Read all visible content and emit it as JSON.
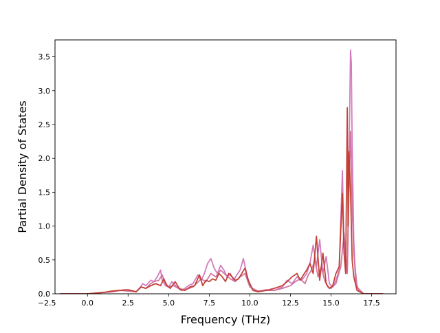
{
  "chart_data": {
    "type": "line",
    "title": "",
    "xlabel": "Frequency (THz)",
    "ylabel": "Partial Density of States",
    "xlim": [
      -2.0,
      19.0
    ],
    "ylim": [
      0.0,
      3.75
    ],
    "xticks": [
      -2.5,
      0.0,
      2.5,
      5.0,
      7.5,
      10.0,
      12.5,
      15.0,
      17.5
    ],
    "xtick_labels": [
      "−2.5",
      "0.0",
      "2.5",
      "5.0",
      "7.5",
      "10.0",
      "12.5",
      "15.0",
      "17.5"
    ],
    "yticks": [
      0.0,
      0.5,
      1.0,
      1.5,
      2.0,
      2.5,
      3.0,
      3.5
    ],
    "ytick_labels": [
      "0.0",
      "0.5",
      "1.0",
      "1.5",
      "2.0",
      "2.5",
      "3.0",
      "3.5"
    ],
    "grid": false,
    "legend": "none",
    "series": [
      {
        "color": "#d075bb",
        "x": [
          -1.7,
          0.0,
          0.5,
          1.0,
          1.5,
          2.0,
          2.3,
          2.6,
          3.0,
          3.2,
          3.4,
          3.6,
          3.9,
          4.1,
          4.3,
          4.5,
          4.6,
          4.8,
          5.0,
          5.2,
          5.5,
          5.8,
          6.0,
          6.2,
          6.5,
          6.8,
          7.0,
          7.2,
          7.4,
          7.6,
          7.8,
          8.0,
          8.2,
          8.4,
          8.6,
          8.8,
          9.0,
          9.2,
          9.4,
          9.6,
          9.8,
          10.0,
          10.2,
          10.5,
          11.0,
          11.5,
          12.0,
          12.3,
          12.6,
          12.9,
          13.2,
          13.5,
          13.7,
          13.9,
          14.1,
          14.3,
          14.5,
          14.7,
          14.9,
          15.1,
          15.3,
          15.5,
          15.7,
          15.8,
          15.9,
          16.0,
          16.1,
          16.2,
          16.25,
          16.3,
          16.4,
          16.5,
          16.7,
          17.0,
          17.5,
          18.2
        ],
        "y": [
          0.0,
          0.0,
          0.01,
          0.02,
          0.03,
          0.05,
          0.06,
          0.05,
          0.03,
          0.08,
          0.15,
          0.12,
          0.2,
          0.18,
          0.25,
          0.35,
          0.2,
          0.12,
          0.1,
          0.18,
          0.1,
          0.05,
          0.08,
          0.12,
          0.15,
          0.28,
          0.2,
          0.3,
          0.45,
          0.52,
          0.38,
          0.3,
          0.42,
          0.35,
          0.25,
          0.3,
          0.2,
          0.28,
          0.35,
          0.52,
          0.3,
          0.12,
          0.05,
          0.03,
          0.06,
          0.05,
          0.1,
          0.2,
          0.15,
          0.25,
          0.2,
          0.3,
          0.45,
          0.72,
          0.4,
          0.8,
          0.3,
          0.55,
          0.15,
          0.1,
          0.2,
          0.35,
          1.82,
          0.7,
          0.4,
          0.3,
          1.9,
          3.6,
          3.4,
          2.2,
          0.8,
          0.2,
          0.05,
          0.0,
          0.0,
          0.0
        ]
      },
      {
        "color": "#cd6f9c",
        "x": [
          -1.7,
          0.0,
          0.5,
          1.0,
          1.5,
          2.0,
          2.5,
          3.0,
          3.3,
          3.6,
          3.9,
          4.1,
          4.4,
          4.6,
          4.8,
          5.0,
          5.3,
          5.6,
          6.0,
          6.5,
          7.0,
          7.3,
          7.6,
          7.9,
          8.2,
          8.5,
          8.8,
          9.1,
          9.4,
          9.7,
          10.0,
          10.5,
          11.0,
          11.5,
          12.0,
          12.5,
          12.8,
          13.1,
          13.4,
          13.6,
          13.8,
          14.0,
          14.2,
          14.4,
          14.6,
          14.8,
          15.0,
          15.3,
          15.6,
          15.8,
          15.9,
          16.0,
          16.1,
          16.2,
          16.3,
          16.4,
          16.6,
          17.0,
          18.2
        ],
        "y": [
          0.0,
          0.0,
          0.01,
          0.02,
          0.03,
          0.05,
          0.04,
          0.03,
          0.1,
          0.08,
          0.15,
          0.18,
          0.2,
          0.28,
          0.15,
          0.1,
          0.12,
          0.08,
          0.06,
          0.1,
          0.22,
          0.18,
          0.3,
          0.25,
          0.35,
          0.28,
          0.22,
          0.18,
          0.25,
          0.3,
          0.1,
          0.04,
          0.05,
          0.05,
          0.08,
          0.12,
          0.18,
          0.22,
          0.15,
          0.28,
          0.35,
          0.5,
          0.25,
          0.4,
          0.2,
          0.1,
          0.08,
          0.15,
          0.4,
          0.9,
          0.6,
          0.3,
          1.5,
          2.4,
          1.3,
          0.6,
          0.1,
          0.0,
          0.0
        ]
      },
      {
        "color": "#c0392b",
        "x": [
          -1.7,
          0.0,
          0.5,
          1.0,
          1.5,
          2.0,
          2.5,
          3.0,
          3.3,
          3.6,
          3.9,
          4.2,
          4.5,
          4.7,
          4.9,
          5.1,
          5.4,
          5.7,
          6.0,
          6.3,
          6.6,
          6.9,
          7.1,
          7.3,
          7.5,
          7.7,
          7.9,
          8.1,
          8.3,
          8.5,
          8.7,
          8.9,
          9.1,
          9.3,
          9.5,
          9.7,
          9.9,
          10.2,
          10.5,
          11.0,
          11.5,
          12.0,
          12.3,
          12.6,
          12.9,
          13.1,
          13.3,
          13.5,
          13.7,
          13.9,
          14.1,
          14.3,
          14.5,
          14.7,
          14.9,
          15.1,
          15.3,
          15.5,
          15.7,
          15.8,
          15.9,
          16.0,
          16.05,
          16.1,
          16.2,
          16.3,
          16.4,
          16.6,
          17.0,
          18.2
        ],
        "y": [
          0.0,
          0.0,
          0.01,
          0.02,
          0.04,
          0.05,
          0.06,
          0.03,
          0.1,
          0.08,
          0.12,
          0.15,
          0.12,
          0.22,
          0.12,
          0.08,
          0.18,
          0.06,
          0.05,
          0.1,
          0.12,
          0.28,
          0.12,
          0.2,
          0.18,
          0.22,
          0.2,
          0.3,
          0.25,
          0.18,
          0.3,
          0.25,
          0.2,
          0.22,
          0.3,
          0.38,
          0.2,
          0.05,
          0.03,
          0.05,
          0.08,
          0.12,
          0.18,
          0.25,
          0.3,
          0.2,
          0.28,
          0.35,
          0.45,
          0.3,
          0.85,
          0.2,
          0.6,
          0.15,
          0.08,
          0.12,
          0.3,
          0.4,
          1.48,
          0.6,
          0.3,
          2.75,
          1.0,
          2.1,
          1.5,
          0.5,
          0.25,
          0.05,
          0.0,
          0.0
        ]
      }
    ]
  }
}
